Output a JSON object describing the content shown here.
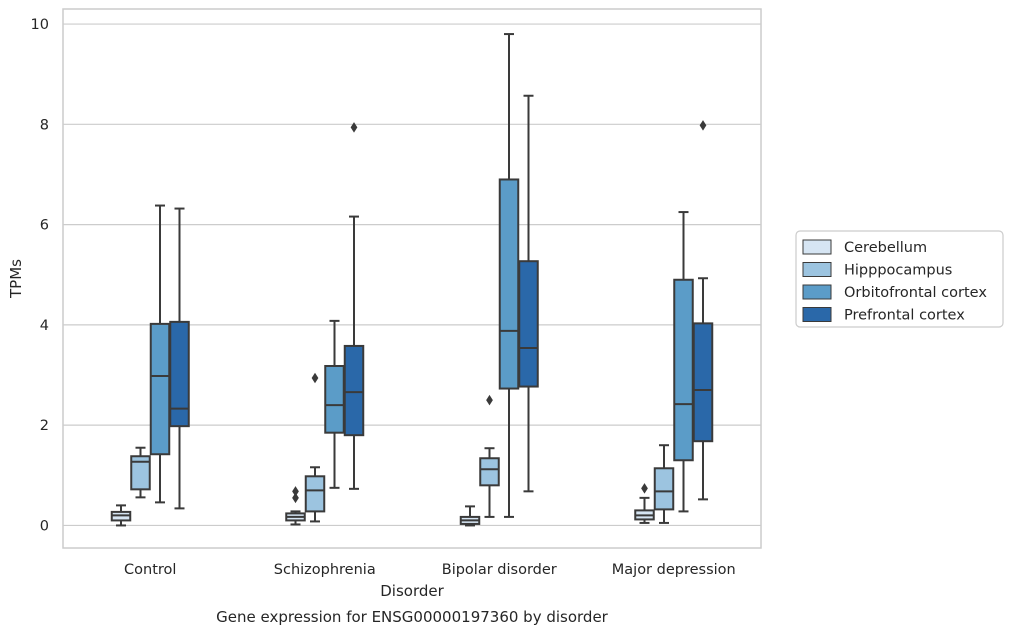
{
  "chart_data": {
    "type": "box",
    "title": "Gene expression for ENSG00000197360 by disorder",
    "xlabel": "Disorder",
    "ylabel": "TPMs",
    "ylim": [
      -0.45,
      10.3
    ],
    "yticks": [
      0,
      2,
      4,
      6,
      8,
      10
    ],
    "grid": "horizontal",
    "legend_position": "right",
    "categories": [
      "Control",
      "Schizophrenia",
      "Bipolar disorder",
      "Major depression"
    ],
    "series": [
      {
        "name": "Cerebellum",
        "color": "#d6e5f3",
        "boxes": [
          {
            "whisker_low": 0.0,
            "q1": 0.1,
            "median": 0.2,
            "q3": 0.27,
            "whisker_high": 0.4,
            "outliers": []
          },
          {
            "whisker_low": 0.02,
            "q1": 0.1,
            "median": 0.17,
            "q3": 0.24,
            "whisker_high": 0.28,
            "outliers": [
              0.55,
              0.68
            ]
          },
          {
            "whisker_low": 0.0,
            "q1": 0.03,
            "median": 0.1,
            "q3": 0.17,
            "whisker_high": 0.38,
            "outliers": []
          },
          {
            "whisker_low": 0.05,
            "q1": 0.12,
            "median": 0.2,
            "q3": 0.3,
            "whisker_high": 0.55,
            "outliers": [
              0.74
            ]
          }
        ]
      },
      {
        "name": "Hipppocampus",
        "color": "#9cc4e0",
        "boxes": [
          {
            "whisker_low": 0.56,
            "q1": 0.72,
            "median": 1.27,
            "q3": 1.38,
            "whisker_high": 1.55,
            "outliers": []
          },
          {
            "whisker_low": 0.08,
            "q1": 0.28,
            "median": 0.7,
            "q3": 0.98,
            "whisker_high": 1.16,
            "outliers": [
              2.94
            ]
          },
          {
            "whisker_low": 0.17,
            "q1": 0.8,
            "median": 1.12,
            "q3": 1.34,
            "whisker_high": 1.54,
            "outliers": [
              2.5
            ]
          },
          {
            "whisker_low": 0.05,
            "q1": 0.32,
            "median": 0.68,
            "q3": 1.14,
            "whisker_high": 1.6,
            "outliers": []
          }
        ]
      },
      {
        "name": "Orbitofrontal cortex",
        "color": "#5b9cc8",
        "boxes": [
          {
            "whisker_low": 0.46,
            "q1": 1.42,
            "median": 2.98,
            "q3": 4.02,
            "whisker_high": 6.38,
            "outliers": []
          },
          {
            "whisker_low": 0.75,
            "q1": 1.85,
            "median": 2.4,
            "q3": 3.18,
            "whisker_high": 4.08,
            "outliers": []
          },
          {
            "whisker_low": 0.17,
            "q1": 2.73,
            "median": 3.88,
            "q3": 6.9,
            "whisker_high": 9.8,
            "outliers": []
          },
          {
            "whisker_low": 0.28,
            "q1": 1.3,
            "median": 2.42,
            "q3": 4.9,
            "whisker_high": 6.25,
            "outliers": []
          }
        ]
      },
      {
        "name": "Prefrontal cortex",
        "color": "#2a68a9",
        "boxes": [
          {
            "whisker_low": 0.34,
            "q1": 1.98,
            "median": 2.33,
            "q3": 4.06,
            "whisker_high": 6.32,
            "outliers": []
          },
          {
            "whisker_low": 0.73,
            "q1": 1.8,
            "median": 2.66,
            "q3": 3.58,
            "whisker_high": 6.16,
            "outliers": [
              7.94
            ]
          },
          {
            "whisker_low": 0.68,
            "q1": 2.77,
            "median": 3.54,
            "q3": 5.27,
            "whisker_high": 8.57,
            "outliers": []
          },
          {
            "whisker_low": 0.52,
            "q1": 1.68,
            "median": 2.7,
            "q3": 4.03,
            "whisker_high": 4.93,
            "outliers": [
              7.98
            ]
          }
        ]
      }
    ],
    "colors": {
      "box_edge": "#3a3a3a",
      "grid": "#cccccc",
      "frame": "#cccccc",
      "text": "#262626"
    }
  }
}
